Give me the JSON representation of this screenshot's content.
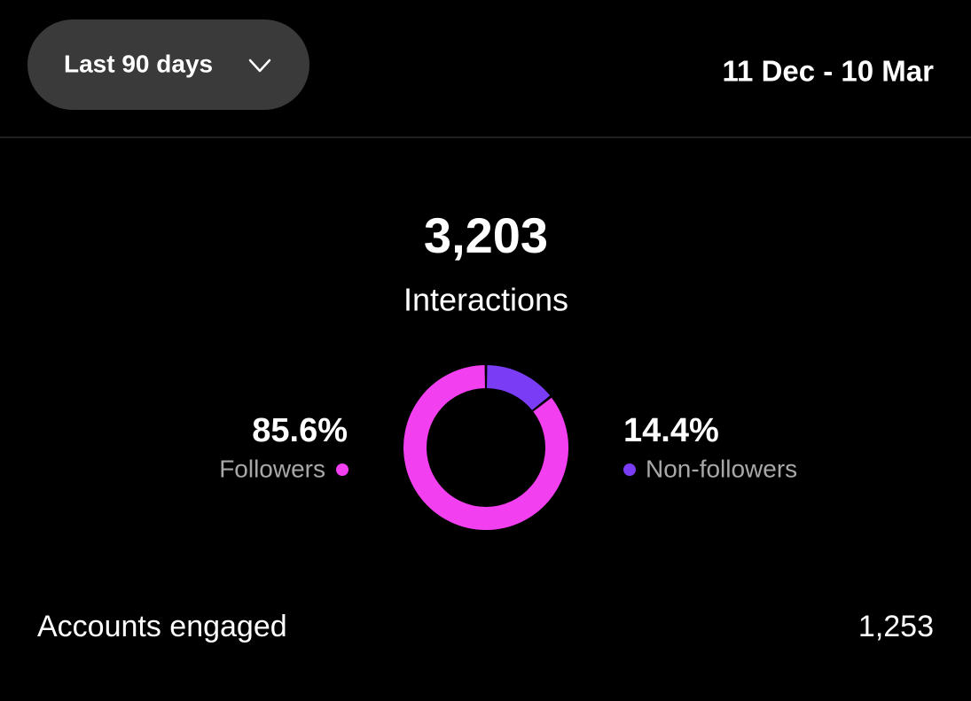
{
  "header": {
    "filter": "Last 90 days",
    "date_range": "11 Dec - 10 Mar"
  },
  "summary": {
    "total": "3,203",
    "label": "Interactions"
  },
  "chart_data": {
    "type": "donut",
    "categories": [
      "Followers",
      "Non-followers"
    ],
    "values": [
      85.6,
      14.4
    ],
    "value_labels": [
      "85.6%",
      "14.4%"
    ],
    "colors": [
      "#f23ff0",
      "#7b3cf5"
    ]
  },
  "footer": {
    "label": "Accounts engaged",
    "value": "1,253"
  }
}
